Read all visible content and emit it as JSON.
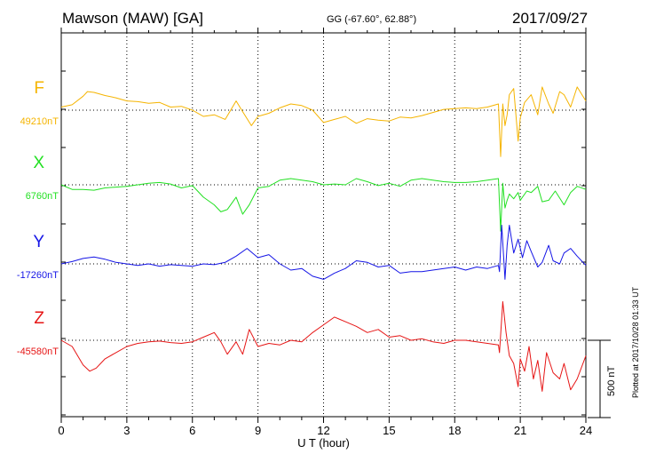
{
  "header": {
    "station": "Mawson (MAW)  [GA]",
    "coords": "GG (-67.60°,  62.88°)",
    "date": "2017/09/27"
  },
  "plotted_note": "Plotted at 2017/10/28 01:33 UT",
  "scale_label": "500 nT",
  "chart_data": {
    "type": "line",
    "xlabel": "U T (hour)",
    "xlim": [
      0,
      24
    ],
    "xticks": [
      "0",
      "3",
      "6",
      "9",
      "12",
      "15",
      "18",
      "21",
      "24"
    ],
    "scale_bar_nT": 500,
    "grid": true,
    "series": [
      {
        "name": "F",
        "baseline_label": "49210nT",
        "color": "#F5B400",
        "x": [
          0,
          0.5,
          1,
          1.2,
          1.5,
          2,
          2.5,
          3,
          3.5,
          4,
          4.5,
          5,
          5.5,
          6,
          6.5,
          7,
          7.5,
          8,
          8.3,
          8.7,
          9,
          9.5,
          10,
          10.5,
          11,
          11.5,
          12,
          12.5,
          13,
          13.5,
          14,
          14.5,
          15,
          15.5,
          16,
          16.5,
          17,
          17.5,
          18,
          18.5,
          19,
          19.5,
          20,
          20.1,
          20.2,
          20.3,
          20.4,
          20.5,
          20.7,
          20.9,
          21,
          21.2,
          21.5,
          21.8,
          22,
          22.3,
          22.5,
          22.8,
          23,
          23.3,
          23.6,
          24
        ],
        "y": [
          20,
          35,
          90,
          120,
          115,
          95,
          80,
          60,
          55,
          45,
          50,
          20,
          25,
          0,
          -40,
          -30,
          -60,
          60,
          -10,
          -100,
          -40,
          -20,
          15,
          40,
          30,
          0,
          -80,
          -60,
          -40,
          -85,
          -55,
          -65,
          -70,
          -45,
          -50,
          -35,
          -15,
          5,
          10,
          15,
          10,
          20,
          40,
          -300,
          40,
          -100,
          -30,
          100,
          140,
          -200,
          -50,
          50,
          100,
          -30,
          150,
          40,
          -20,
          120,
          100,
          20,
          150,
          60
        ]
      },
      {
        "name": "X",
        "baseline_label": "6760nT",
        "color": "#22E022",
        "x": [
          0,
          0.5,
          1,
          1.5,
          2,
          2.5,
          3,
          3.5,
          4,
          4.5,
          5,
          5.5,
          6,
          6.5,
          7,
          7.3,
          7.6,
          8,
          8.3,
          8.6,
          9,
          9.5,
          10,
          10.5,
          11,
          11.5,
          12,
          12.5,
          13,
          13.5,
          14,
          14.5,
          15,
          15.5,
          16,
          16.5,
          17,
          17.5,
          18,
          18.5,
          19,
          19.5,
          20,
          20.1,
          20.2,
          20.3,
          20.4,
          20.5,
          20.7,
          20.9,
          21,
          21.3,
          21.5,
          21.8,
          22,
          22.3,
          22.6,
          23,
          23.3,
          23.6,
          24
        ],
        "y": [
          0,
          -30,
          -30,
          -35,
          -20,
          -15,
          -10,
          0,
          10,
          15,
          5,
          -20,
          -5,
          -80,
          -130,
          -175,
          -160,
          -80,
          -190,
          -130,
          -20,
          -10,
          30,
          40,
          30,
          20,
          0,
          5,
          0,
          40,
          20,
          -5,
          10,
          -10,
          30,
          40,
          30,
          20,
          15,
          15,
          20,
          30,
          40,
          -300,
          10,
          -150,
          -100,
          -60,
          -90,
          -50,
          -100,
          -40,
          -50,
          -10,
          -110,
          -100,
          -40,
          -130,
          -50,
          -10,
          -30
        ]
      },
      {
        "name": "Y",
        "baseline_label": "-17260nT",
        "color": "#1515E6",
        "x": [
          0,
          0.5,
          1,
          1.5,
          2,
          2.5,
          3,
          3.5,
          4,
          4.5,
          5,
          5.5,
          6,
          6.5,
          7,
          7.5,
          8,
          8.5,
          9,
          9.5,
          10,
          10.5,
          11,
          11.5,
          12,
          12.5,
          13,
          13.5,
          14,
          14.5,
          15,
          15.5,
          16,
          16.5,
          17,
          17.5,
          18,
          18.5,
          19,
          19.5,
          20,
          20.05,
          20.15,
          20.3,
          20.4,
          20.5,
          20.7,
          20.9,
          21.1,
          21.3,
          21.5,
          21.8,
          22,
          22.3,
          22.5,
          22.8,
          23,
          23.3,
          23.6,
          24
        ],
        "y": [
          0,
          15,
          35,
          45,
          30,
          10,
          0,
          -10,
          0,
          -15,
          -5,
          -10,
          -15,
          0,
          -5,
          10,
          50,
          100,
          40,
          60,
          0,
          -40,
          -30,
          -80,
          -100,
          -60,
          -30,
          20,
          10,
          -20,
          -10,
          -60,
          -50,
          -50,
          -40,
          -30,
          -20,
          -40,
          -20,
          -30,
          -10,
          -50,
          250,
          -100,
          120,
          250,
          70,
          160,
          40,
          150,
          80,
          -20,
          10,
          120,
          20,
          0,
          70,
          100,
          50,
          -10
        ]
      },
      {
        "name": "Z",
        "baseline_label": "-45580nT",
        "color": "#E61515",
        "x": [
          0,
          0.5,
          1,
          1.3,
          1.6,
          2,
          2.5,
          3,
          3.5,
          4,
          4.5,
          5,
          5.5,
          6,
          6.5,
          7,
          7.3,
          7.6,
          8,
          8.3,
          8.6,
          9,
          9.5,
          10,
          10.5,
          11,
          11.5,
          12,
          12.5,
          13,
          13.5,
          14,
          14.5,
          15,
          15.5,
          16,
          16.5,
          17,
          17.5,
          18,
          18.5,
          19,
          19.5,
          20,
          20.05,
          20.2,
          20.35,
          20.5,
          20.7,
          20.9,
          21,
          21.2,
          21.4,
          21.6,
          21.8,
          22,
          22.2,
          22.5,
          22.8,
          23,
          23.3,
          23.6,
          24
        ],
        "y": [
          0,
          -40,
          -160,
          -200,
          -180,
          -120,
          -80,
          -40,
          -20,
          -10,
          -5,
          -15,
          -20,
          -10,
          20,
          50,
          -10,
          -90,
          -10,
          -90,
          70,
          -40,
          -20,
          -30,
          0,
          -10,
          50,
          100,
          150,
          120,
          90,
          50,
          70,
          20,
          30,
          0,
          10,
          -10,
          -20,
          0,
          0,
          -10,
          -20,
          -30,
          -80,
          250,
          50,
          -100,
          -150,
          -300,
          -120,
          -200,
          -40,
          -250,
          -130,
          -330,
          -80,
          -210,
          -250,
          -150,
          -320,
          -250,
          -100
        ]
      }
    ]
  }
}
